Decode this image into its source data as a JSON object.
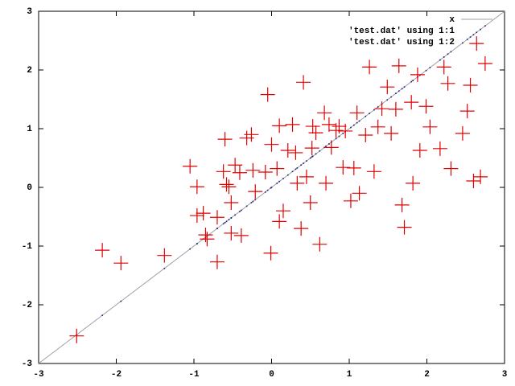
{
  "chart_data": {
    "type": "scatter",
    "xlim": [
      -3,
      3
    ],
    "ylim": [
      -3,
      3
    ],
    "xticks": [
      -3,
      -2,
      -1,
      0,
      1,
      2,
      3
    ],
    "yticks": [
      -3,
      -2,
      -1,
      0,
      1,
      2,
      3
    ],
    "legend": "top-right",
    "x": [
      -2.51,
      -2.18,
      -1.94,
      -1.38,
      -1.05,
      -0.96,
      -0.96,
      -0.88,
      -0.85,
      -0.83,
      -0.7,
      -0.7,
      -0.6,
      -0.62,
      -0.58,
      -0.55,
      -0.52,
      -0.52,
      -0.47,
      -0.41,
      -0.39,
      -0.32,
      -0.26,
      -0.24,
      -0.21,
      -0.08,
      -0.05,
      -0.01,
      0.0,
      0.07,
      0.1,
      0.1,
      0.15,
      0.21,
      0.27,
      0.31,
      0.33,
      0.38,
      0.41,
      0.45,
      0.5,
      0.52,
      0.53,
      0.57,
      0.62,
      0.68,
      0.7,
      0.74,
      0.77,
      0.83,
      0.87,
      0.92,
      0.95,
      1.02,
      1.06,
      1.1,
      1.13,
      1.21,
      1.26,
      1.32,
      1.37,
      1.42,
      1.49,
      1.54,
      1.6,
      1.64,
      1.68,
      1.71,
      1.8,
      1.82,
      1.88,
      1.91,
      1.99,
      2.04,
      2.17,
      2.22,
      2.27,
      2.31,
      2.46,
      2.52,
      2.56,
      2.6,
      2.64,
      2.69,
      2.75
    ],
    "series": [
      {
        "name": "x",
        "style": "line",
        "color": "#a0a0a0",
        "x": [
          -3,
          3
        ],
        "values": [
          -3,
          3
        ]
      },
      {
        "name": "'test.dat' using 1:1",
        "style": "dots",
        "color": "#1a1a80",
        "values": [
          -2.51,
          -2.18,
          -1.94,
          -1.38,
          -1.05,
          -0.96,
          -0.96,
          -0.88,
          -0.85,
          -0.83,
          -0.7,
          -0.7,
          -0.6,
          -0.62,
          -0.58,
          -0.55,
          -0.52,
          -0.52,
          -0.47,
          -0.41,
          -0.39,
          -0.32,
          -0.26,
          -0.24,
          -0.21,
          -0.08,
          -0.05,
          -0.01,
          0.0,
          0.07,
          0.1,
          0.1,
          0.15,
          0.21,
          0.27,
          0.31,
          0.33,
          0.38,
          0.41,
          0.45,
          0.5,
          0.52,
          0.53,
          0.57,
          0.62,
          0.68,
          0.7,
          0.74,
          0.77,
          0.83,
          0.87,
          0.92,
          0.95,
          1.02,
          1.06,
          1.1,
          1.13,
          1.21,
          1.26,
          1.32,
          1.37,
          1.42,
          1.49,
          1.54,
          1.6,
          1.64,
          1.68,
          1.71,
          1.8,
          1.82,
          1.88,
          1.91,
          1.99,
          2.04,
          2.17,
          2.22,
          2.27,
          2.31,
          2.46,
          2.52,
          2.56,
          2.6,
          2.64,
          2.69,
          2.75
        ]
      },
      {
        "name": "'test.dat' using 1:2",
        "style": "cross",
        "color": "#e00000",
        "values": [
          -2.53,
          -1.07,
          -1.29,
          -1.16,
          0.36,
          0.01,
          -0.48,
          -0.44,
          -0.81,
          -0.88,
          -0.51,
          -1.27,
          0.82,
          0.27,
          0.05,
          0.01,
          -0.26,
          -0.78,
          0.38,
          0.25,
          -0.82,
          0.84,
          0.9,
          0.29,
          -0.07,
          0.26,
          1.58,
          -1.12,
          0.73,
          0.32,
          1.05,
          -0.58,
          -0.4,
          0.63,
          1.07,
          0.59,
          0.07,
          -0.7,
          1.79,
          0.18,
          -0.26,
          0.67,
          1.04,
          0.93,
          -0.97,
          1.27,
          0.07,
          1.07,
          0.68,
          0.97,
          1.04,
          0.34,
          0.96,
          -0.23,
          0.33,
          1.27,
          -0.1,
          0.89,
          2.05,
          0.27,
          1.03,
          1.34,
          1.71,
          0.92,
          1.33,
          2.07,
          -0.3,
          -0.68,
          1.45,
          0.07,
          1.92,
          0.63,
          1.38,
          1.03,
          0.66,
          2.05,
          1.77,
          0.32,
          0.92,
          1.3,
          1.74,
          0.11,
          2.45,
          0.18,
          2.11
        ]
      }
    ]
  }
}
